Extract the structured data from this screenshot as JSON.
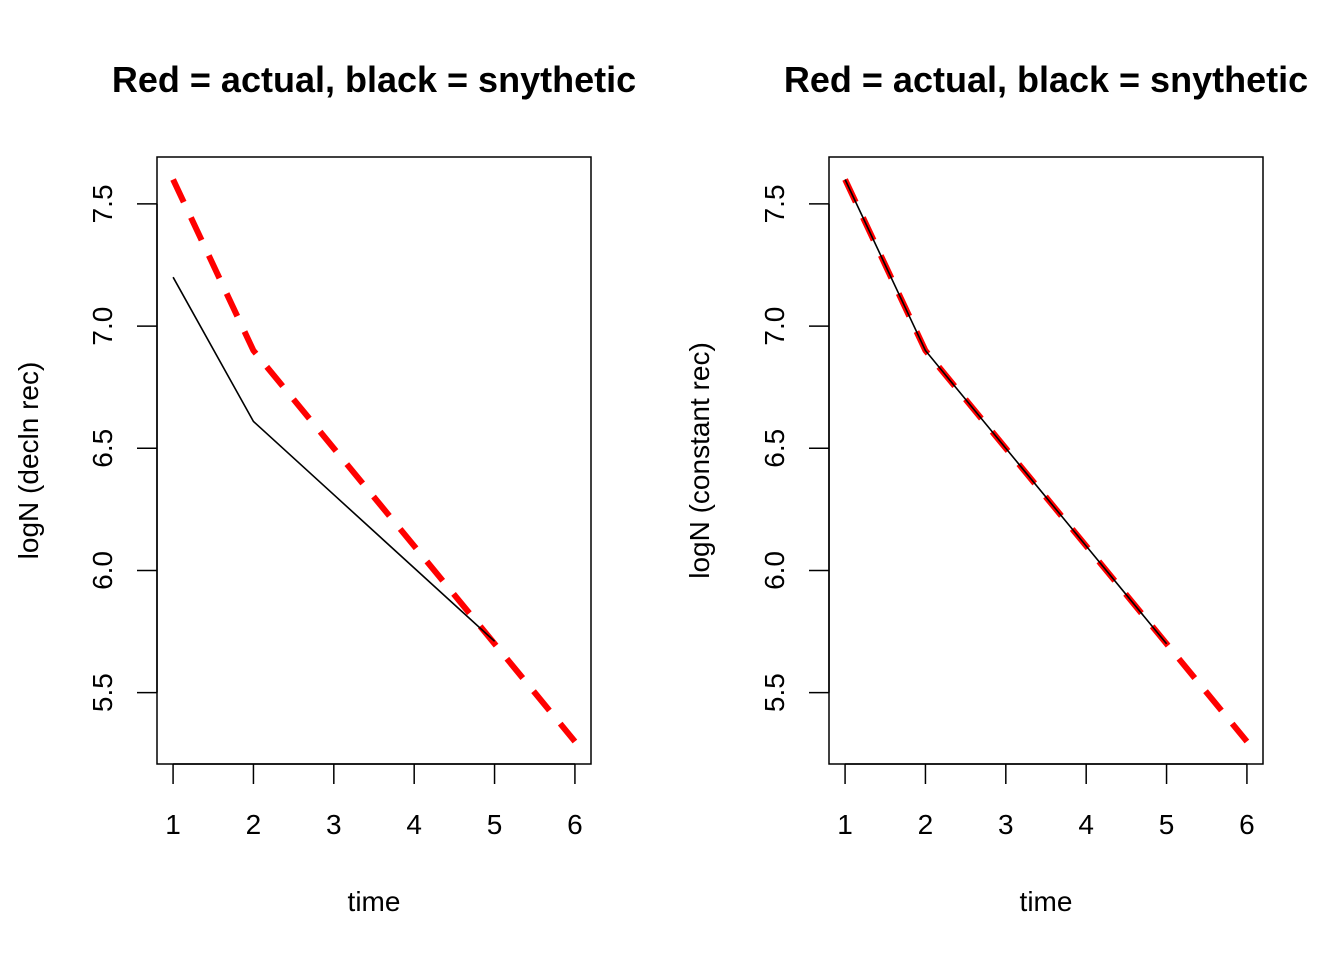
{
  "chart_data": [
    {
      "type": "line",
      "title": "Red = actual, black = snythetic",
      "xlabel": "time",
      "ylabel": "logN (decln rec)",
      "xlim": [
        1,
        6
      ],
      "ylim": [
        5.3,
        7.6
      ],
      "x_ticks": [
        "1",
        "2",
        "3",
        "4",
        "5",
        "6"
      ],
      "y_ticks": [
        "5.5",
        "6.0",
        "6.5",
        "7.0",
        "7.5"
      ],
      "series": [
        {
          "color": "#ff0000",
          "style": "dashed",
          "x": [
            1,
            2,
            3,
            4,
            5,
            6
          ],
          "y": [
            7.6,
            6.9,
            6.5,
            6.1,
            5.7,
            5.3
          ]
        },
        {
          "color": "#000000",
          "style": "solid",
          "x": [
            1,
            2,
            3,
            4,
            5
          ],
          "y": [
            7.2,
            6.61,
            6.31,
            6.01,
            5.71
          ]
        }
      ]
    },
    {
      "type": "line",
      "title": "Red = actual, black = snythetic",
      "xlabel": "time",
      "ylabel": "logN (constant rec)",
      "xlim": [
        1,
        6
      ],
      "ylim": [
        5.3,
        7.6
      ],
      "x_ticks": [
        "1",
        "2",
        "3",
        "4",
        "5",
        "6"
      ],
      "y_ticks": [
        "5.5",
        "6.0",
        "6.5",
        "7.0",
        "7.5"
      ],
      "series": [
        {
          "color": "#ff0000",
          "style": "dashed",
          "x": [
            1,
            2,
            3,
            4,
            5,
            6
          ],
          "y": [
            7.6,
            6.9,
            6.5,
            6.1,
            5.7,
            5.3
          ]
        },
        {
          "color": "#000000",
          "style": "solid",
          "x": [
            1,
            2,
            3,
            4,
            5
          ],
          "y": [
            7.6,
            6.9,
            6.5,
            6.1,
            5.7
          ]
        }
      ]
    }
  ]
}
